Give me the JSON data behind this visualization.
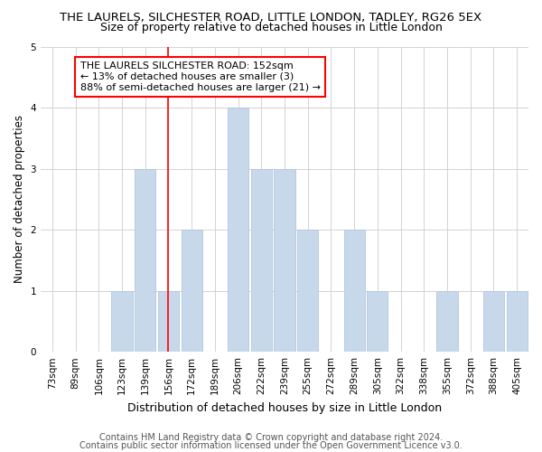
{
  "title": "THE LAURELS, SILCHESTER ROAD, LITTLE LONDON, TADLEY, RG26 5EX",
  "subtitle": "Size of property relative to detached houses in Little London",
  "xlabel": "Distribution of detached houses by size in Little London",
  "ylabel": "Number of detached properties",
  "categories": [
    "73sqm",
    "89sqm",
    "106sqm",
    "123sqm",
    "139sqm",
    "156sqm",
    "172sqm",
    "189sqm",
    "206sqm",
    "222sqm",
    "239sqm",
    "255sqm",
    "272sqm",
    "289sqm",
    "305sqm",
    "322sqm",
    "338sqm",
    "355sqm",
    "372sqm",
    "388sqm",
    "405sqm"
  ],
  "values": [
    0,
    0,
    0,
    1,
    3,
    1,
    2,
    0,
    4,
    3,
    3,
    2,
    0,
    2,
    1,
    0,
    0,
    1,
    0,
    1,
    1
  ],
  "bar_color": "#c8d8eb",
  "bar_edge_color": "#b0c8dd",
  "red_line_index": 5,
  "annotation_text": "THE LAURELS SILCHESTER ROAD: 152sqm\n← 13% of detached houses are smaller (3)\n88% of semi-detached houses are larger (21) →",
  "ylim": [
    0,
    5
  ],
  "yticks": [
    0,
    1,
    2,
    3,
    4,
    5
  ],
  "footer_line1": "Contains HM Land Registry data © Crown copyright and database right 2024.",
  "footer_line2": "Contains public sector information licensed under the Open Government Licence v3.0.",
  "background_color": "#ffffff",
  "title_fontsize": 9.5,
  "subtitle_fontsize": 9,
  "xlabel_fontsize": 9,
  "ylabel_fontsize": 8.5,
  "tick_fontsize": 7.5,
  "footer_fontsize": 7,
  "annot_fontsize": 8
}
